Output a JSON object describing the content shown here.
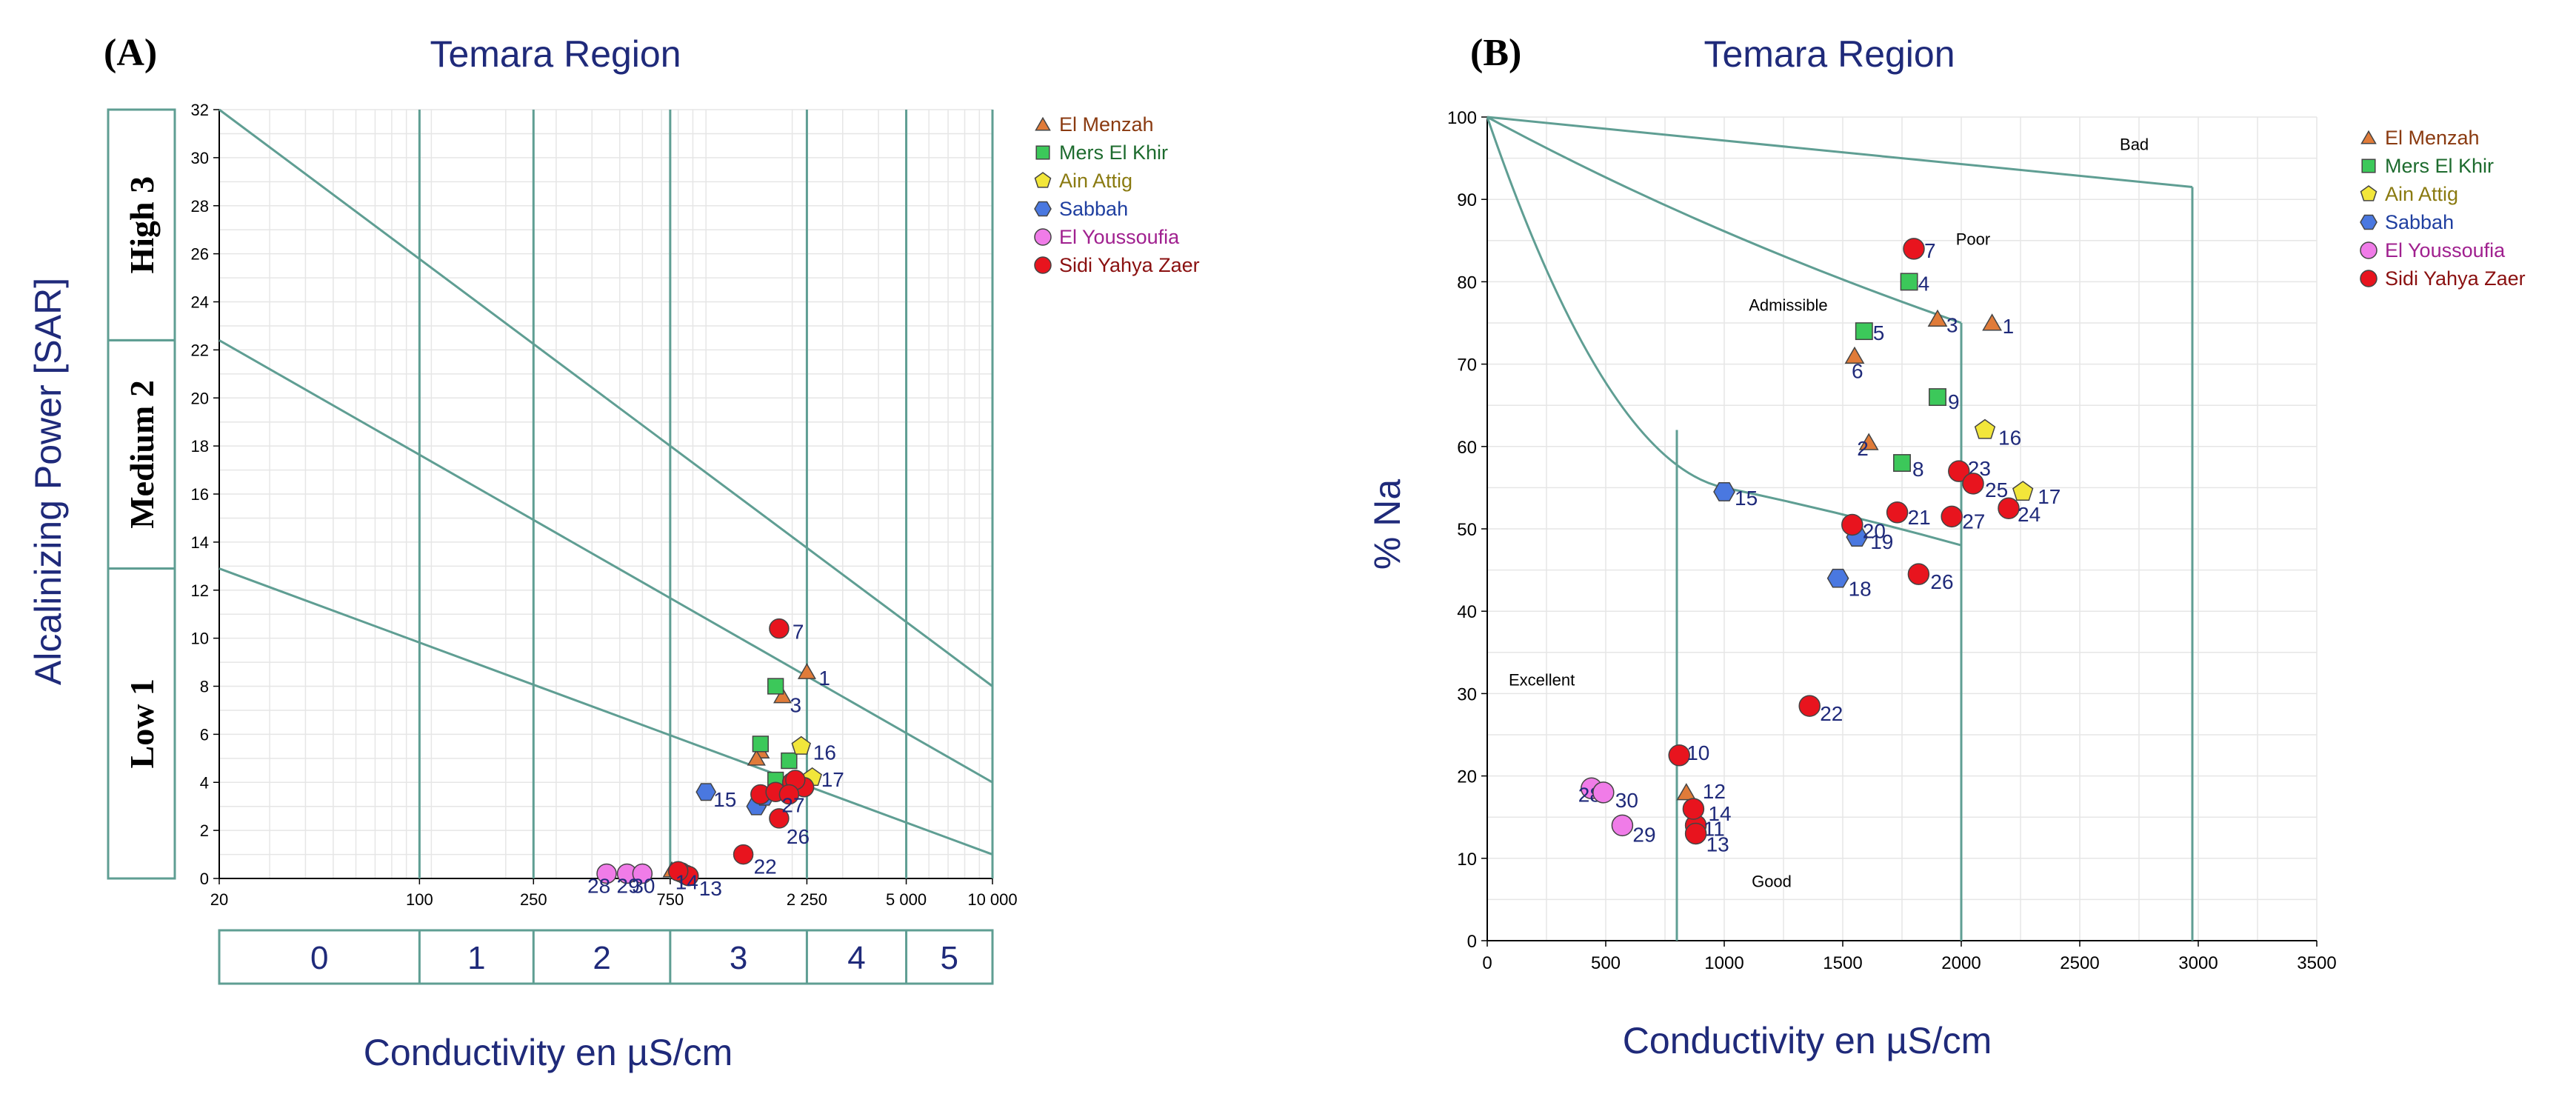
{
  "colors": {
    "boundary": "#5f9e93",
    "grid": "#e6e6e6",
    "title": "#1f2a7a",
    "El Menzah": "#e07b39",
    "Mers El Khir": "#3cc85a",
    "Ain Attig": "#f2e63a",
    "Sabbah": "#4a78e0",
    "El Youssoufia": "#f07ce8",
    "Sidi Yahya Zaer": "#e8141e"
  },
  "legend": [
    {
      "name": "El Menzah",
      "shape": "triangle",
      "text_color": "#8a3a10"
    },
    {
      "name": "Mers El Khir",
      "shape": "square",
      "text_color": "#1d6b2e"
    },
    {
      "name": "Ain Attig",
      "shape": "pentagon",
      "text_color": "#8a7a10"
    },
    {
      "name": "Sabbah",
      "shape": "hexagon",
      "text_color": "#1f3fa0"
    },
    {
      "name": "El Youssoufia",
      "shape": "circle",
      "text_color": "#a0208f"
    },
    {
      "name": "Sidi Yahya Zaer",
      "shape": "circle",
      "text_color": "#8a1010"
    }
  ],
  "chart_data": [
    {
      "panel": "(A)",
      "type": "scatter",
      "title": "Temara Region",
      "xlabel": "Conductivity en µS/cm",
      "ylabel": "Alcalinizing Power  [SAR]",
      "x_scale": "log",
      "xlim": [
        20,
        10000
      ],
      "ylim": [
        0,
        32
      ],
      "x_ticks": [
        20,
        100,
        250,
        750,
        2250,
        5000,
        10000
      ],
      "x_tick_labels": [
        "20",
        "100",
        "250",
        "750",
        "2 250",
        "5 000",
        "10 000"
      ],
      "y_ticks": [
        0,
        2,
        4,
        6,
        8,
        10,
        12,
        14,
        16,
        18,
        20,
        22,
        24,
        26,
        28,
        30,
        32
      ],
      "salinity_classes": [
        "0",
        "1",
        "2",
        "3",
        "4",
        "5"
      ],
      "sodium_classes": [
        {
          "label": "High  3",
          "range": [
            22.4,
            32
          ]
        },
        {
          "label": "Medium  2",
          "range": [
            12.9,
            22.4
          ]
        },
        {
          "label": "Low  1",
          "range": [
            0,
            12.9
          ]
        }
      ],
      "boundary_lines": [
        {
          "from": [
            20,
            32
          ],
          "to": [
            10000,
            8
          ]
        },
        {
          "from": [
            20,
            22.4
          ],
          "to": [
            10000,
            4
          ]
        },
        {
          "from": [
            20,
            12.9
          ],
          "to": [
            10000,
            1
          ]
        }
      ],
      "points": [
        {
          "id": "1",
          "site": "El Menzah",
          "x": 2250,
          "y": 8.6
        },
        {
          "id": "2",
          "site": "El Menzah",
          "x": 1550,
          "y": 5.3
        },
        {
          "id": "3",
          "site": "El Menzah",
          "x": 1850,
          "y": 7.6
        },
        {
          "id": "6",
          "site": "El Menzah",
          "x": 1500,
          "y": 5.0
        },
        {
          "id": "10",
          "site": "El Menzah",
          "x": 760,
          "y": 0.35
        },
        {
          "id": "4",
          "site": "Mers El Khir",
          "x": 1750,
          "y": 8.0
        },
        {
          "id": "5",
          "site": "Mers El Khir",
          "x": 1550,
          "y": 5.6
        },
        {
          "id": "8",
          "site": "Mers El Khir",
          "x": 1750,
          "y": 4.1
        },
        {
          "id": "9",
          "site": "Mers El Khir",
          "x": 1950,
          "y": 4.9
        },
        {
          "id": "16",
          "site": "Ain Attig",
          "x": 2150,
          "y": 5.5
        },
        {
          "id": "17",
          "site": "Ain Attig",
          "x": 2350,
          "y": 4.2
        },
        {
          "id": "15",
          "site": "Sabbah",
          "x": 1000,
          "y": 3.6
        },
        {
          "id": "18",
          "site": "Sabbah",
          "x": 1500,
          "y": 3.0
        },
        {
          "id": "19",
          "site": "Sabbah",
          "x": 1600,
          "y": 3.4
        },
        {
          "id": "28",
          "site": "El Youssoufia",
          "x": 450,
          "y": 0.2
        },
        {
          "id": "29",
          "site": "El Youssoufia",
          "x": 530,
          "y": 0.2
        },
        {
          "id": "30",
          "site": "El Youssoufia",
          "x": 600,
          "y": 0.2
        },
        {
          "id": "7",
          "site": "Sidi Yahya Zaer",
          "x": 1800,
          "y": 10.4
        },
        {
          "id": "11",
          "site": "Sidi Yahya Zaer",
          "x": 850,
          "y": 0.15
        },
        {
          "id": "12",
          "site": "Sidi Yahya Zaer",
          "x": 820,
          "y": 0.25
        },
        {
          "id": "13",
          "site": "Sidi Yahya Zaer",
          "x": 870,
          "y": 0.1
        },
        {
          "id": "14",
          "site": "Sidi Yahya Zaer",
          "x": 800,
          "y": 0.3
        },
        {
          "id": "20",
          "site": "Sidi Yahya Zaer",
          "x": 1550,
          "y": 3.5
        },
        {
          "id": "21",
          "site": "Sidi Yahya Zaer",
          "x": 1750,
          "y": 3.6
        },
        {
          "id": "22",
          "site": "Sidi Yahya Zaer",
          "x": 1350,
          "y": 1.0
        },
        {
          "id": "23",
          "site": "Sidi Yahya Zaer",
          "x": 2000,
          "y": 4.0
        },
        {
          "id": "24",
          "site": "Sidi Yahya Zaer",
          "x": 2200,
          "y": 3.8
        },
        {
          "id": "25",
          "site": "Sidi Yahya Zaer",
          "x": 2050,
          "y": 4.1
        },
        {
          "id": "26",
          "site": "Sidi Yahya Zaer",
          "x": 1800,
          "y": 2.5
        },
        {
          "id": "27",
          "site": "Sidi Yahya Zaer",
          "x": 1950,
          "y": 3.5
        }
      ],
      "visible_point_labels": [
        {
          "text": "1",
          "near": "1"
        },
        {
          "text": "3",
          "near": "3"
        },
        {
          "text": "7",
          "near": "7"
        },
        {
          "text": "16",
          "near": "16"
        },
        {
          "text": "15",
          "near": "15"
        },
        {
          "text": "26",
          "near": "26"
        },
        {
          "text": "22",
          "near": "22"
        },
        {
          "text": "27",
          "near": "27"
        },
        {
          "text": "17",
          "near": "17"
        },
        {
          "text": "28",
          "near": "28"
        },
        {
          "text": "29",
          "near": "29"
        },
        {
          "text": "30",
          "near": "30"
        },
        {
          "text": "13",
          "near": "13"
        },
        {
          "text": "14",
          "near": "14"
        }
      ]
    },
    {
      "panel": "(B)",
      "type": "scatter",
      "title": "Temara Region",
      "xlabel": "Conductivity en µS/cm",
      "ylabel": "% Na",
      "xlim": [
        0,
        3500
      ],
      "ylim": [
        0,
        100
      ],
      "x_ticks": [
        0,
        500,
        1000,
        1500,
        2000,
        2500,
        3000,
        3500
      ],
      "y_ticks": [
        0,
        10,
        20,
        30,
        40,
        50,
        60,
        70,
        80,
        90,
        100
      ],
      "regions": [
        "Bad",
        "Poor",
        "Admissible",
        "Excellent",
        "Good"
      ],
      "points": [
        {
          "id": "1",
          "site": "El Menzah",
          "x": 2130,
          "y": 75
        },
        {
          "id": "2",
          "site": "El Menzah",
          "x": 1610,
          "y": 60.5
        },
        {
          "id": "3",
          "site": "El Menzah",
          "x": 1900,
          "y": 75.5
        },
        {
          "id": "6",
          "site": "El Menzah",
          "x": 1550,
          "y": 71
        },
        {
          "id": "12",
          "site": "El Menzah",
          "x": 840,
          "y": 18
        },
        {
          "id": "4",
          "site": "Mers El Khir",
          "x": 1780,
          "y": 80
        },
        {
          "id": "5",
          "site": "Mers El Khir",
          "x": 1590,
          "y": 74
        },
        {
          "id": "8",
          "site": "Mers El Khir",
          "x": 1750,
          "y": 58
        },
        {
          "id": "9",
          "site": "Mers El Khir",
          "x": 1900,
          "y": 66
        },
        {
          "id": "16",
          "site": "Ain Attig",
          "x": 2100,
          "y": 62
        },
        {
          "id": "17",
          "site": "Ain Attig",
          "x": 2260,
          "y": 54.5
        },
        {
          "id": "15",
          "site": "Sabbah",
          "x": 1000,
          "y": 54.5
        },
        {
          "id": "18",
          "site": "Sabbah",
          "x": 1480,
          "y": 44
        },
        {
          "id": "19",
          "site": "Sabbah",
          "x": 1560,
          "y": 49
        },
        {
          "id": "28",
          "site": "El Youssoufia",
          "x": 440,
          "y": 18.5
        },
        {
          "id": "29",
          "site": "El Youssoufia",
          "x": 570,
          "y": 14
        },
        {
          "id": "30",
          "site": "El Youssoufia",
          "x": 490,
          "y": 18
        },
        {
          "id": "7",
          "site": "Sidi Yahya Zaer",
          "x": 1800,
          "y": 84
        },
        {
          "id": "10",
          "site": "Sidi Yahya Zaer",
          "x": 810,
          "y": 22.5
        },
        {
          "id": "11",
          "site": "Sidi Yahya Zaer",
          "x": 880,
          "y": 14
        },
        {
          "id": "13",
          "site": "Sidi Yahya Zaer",
          "x": 880,
          "y": 13
        },
        {
          "id": "14",
          "site": "Sidi Yahya Zaer",
          "x": 870,
          "y": 16
        },
        {
          "id": "20",
          "site": "Sidi Yahya Zaer",
          "x": 1540,
          "y": 50.5
        },
        {
          "id": "21",
          "site": "Sidi Yahya Zaer",
          "x": 1730,
          "y": 52
        },
        {
          "id": "22",
          "site": "Sidi Yahya Zaer",
          "x": 1360,
          "y": 28.5
        },
        {
          "id": "23",
          "site": "Sidi Yahya Zaer",
          "x": 1990,
          "y": 57
        },
        {
          "id": "24",
          "site": "Sidi Yahya Zaer",
          "x": 2200,
          "y": 52.5
        },
        {
          "id": "25",
          "site": "Sidi Yahya Zaer",
          "x": 2050,
          "y": 55.5
        },
        {
          "id": "26",
          "site": "Sidi Yahya Zaer",
          "x": 1820,
          "y": 44.5
        },
        {
          "id": "27",
          "site": "Sidi Yahya Zaer",
          "x": 1960,
          "y": 51.5
        }
      ]
    }
  ]
}
